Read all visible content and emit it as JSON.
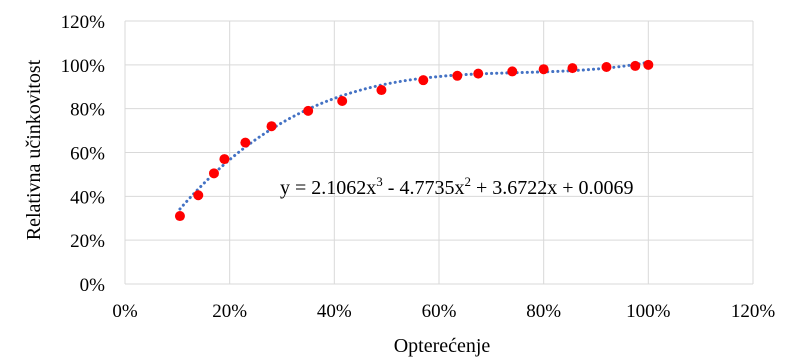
{
  "chart_data": {
    "type": "scatter",
    "title": "",
    "xlabel": "Opterećenje",
    "ylabel": "Relativna učinkovitost",
    "xlim": [
      0,
      1.2
    ],
    "ylim": [
      0,
      1.2
    ],
    "x_ticks": [
      0,
      0.2,
      0.4,
      0.6,
      0.8,
      1.0,
      1.2
    ],
    "y_ticks": [
      0,
      0.2,
      0.4,
      0.6,
      0.8,
      1.0,
      1.2
    ],
    "x_tick_labels": [
      "0%",
      "20%",
      "40%",
      "60%",
      "80%",
      "100%",
      "120%"
    ],
    "y_tick_labels": [
      "0%",
      "20%",
      "40%",
      "60%",
      "80%",
      "100%",
      "120%"
    ],
    "grid": true,
    "series": [
      {
        "marker_color": "#ff0000",
        "points": [
          {
            "x": 0.105,
            "y": 0.31
          },
          {
            "x": 0.14,
            "y": 0.405
          },
          {
            "x": 0.17,
            "y": 0.505
          },
          {
            "x": 0.19,
            "y": 0.57
          },
          {
            "x": 0.23,
            "y": 0.645
          },
          {
            "x": 0.28,
            "y": 0.72
          },
          {
            "x": 0.35,
            "y": 0.79
          },
          {
            "x": 0.415,
            "y": 0.835
          },
          {
            "x": 0.49,
            "y": 0.885
          },
          {
            "x": 0.57,
            "y": 0.93
          },
          {
            "x": 0.635,
            "y": 0.95
          },
          {
            "x": 0.675,
            "y": 0.96
          },
          {
            "x": 0.74,
            "y": 0.97
          },
          {
            "x": 0.8,
            "y": 0.98
          },
          {
            "x": 0.855,
            "y": 0.985
          },
          {
            "x": 0.92,
            "y": 0.99
          },
          {
            "x": 0.975,
            "y": 0.995
          },
          {
            "x": 1.0,
            "y": 1.0
          }
        ]
      }
    ],
    "trendline": {
      "type": "polynomial",
      "order": 3,
      "color": "#4472c4",
      "style": "dotted",
      "coefficients": [
        2.1062,
        -4.7735,
        3.6722,
        0.0069
      ],
      "x_range": [
        0.105,
        1.0
      ],
      "equation": {
        "prefix": "y = 2.1062x",
        "sup1": "3",
        "mid1": " - 4.7735x",
        "sup2": "2",
        "suffix": " + 3.6722x + 0.0069"
      }
    }
  }
}
